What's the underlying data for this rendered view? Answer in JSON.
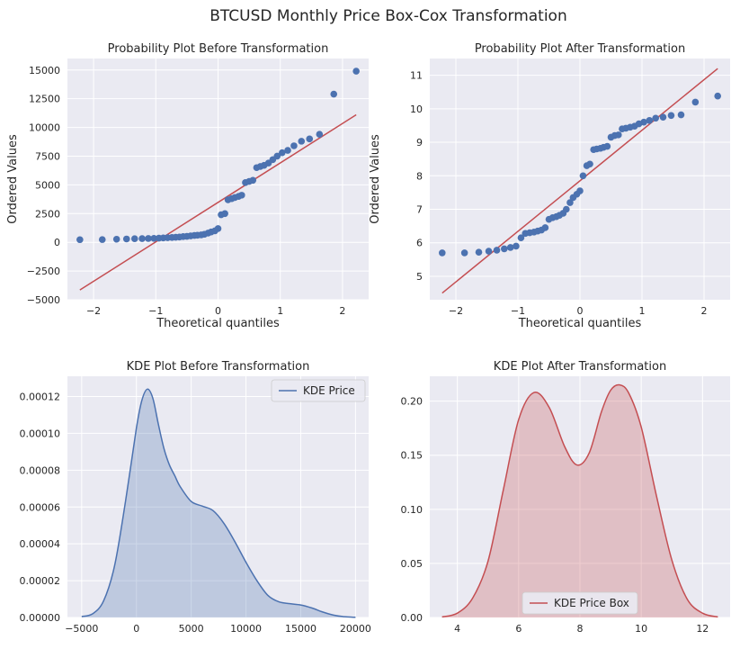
{
  "figure": {
    "title": "BTCUSD Monthly Price Box-Cox Transformation"
  },
  "colors": {
    "blue": "#4c72b0",
    "red": "#c44e52",
    "panel": "#eaeaf2",
    "grid": "#ffffff",
    "text": "#262626"
  },
  "chart_data": [
    {
      "id": "pp_before",
      "type": "scatter",
      "title": "Probability Plot Before Transformation",
      "xlabel": "Theoretical quantiles",
      "ylabel": "Ordered Values",
      "xlim": [
        -2.42,
        2.42
      ],
      "ylim": [
        -5000,
        16000
      ],
      "xticks": [
        -2,
        -1,
        0,
        1,
        2
      ],
      "yticks": [
        -5000,
        -2500,
        0,
        2500,
        5000,
        7500,
        10000,
        12500,
        15000
      ],
      "grid": true,
      "series": [
        {
          "kind": "points",
          "x": [
            -2.22,
            -1.86,
            -1.63,
            -1.47,
            -1.34,
            -1.22,
            -1.12,
            -1.03,
            -0.95,
            -0.88,
            -0.81,
            -0.74,
            -0.68,
            -0.62,
            -0.56,
            -0.5,
            -0.44,
            -0.38,
            -0.33,
            -0.27,
            -0.22,
            -0.16,
            -0.11,
            -0.05,
            0.0,
            0.05,
            0.11,
            0.16,
            0.22,
            0.27,
            0.33,
            0.38,
            0.44,
            0.5,
            0.56,
            0.62,
            0.68,
            0.74,
            0.81,
            0.88,
            0.95,
            1.03,
            1.12,
            1.22,
            1.34,
            1.47,
            1.63,
            1.86,
            2.22
          ],
          "y": [
            230,
            240,
            270,
            290,
            310,
            320,
            330,
            340,
            360,
            380,
            400,
            420,
            440,
            460,
            500,
            520,
            560,
            600,
            620,
            650,
            700,
            800,
            900,
            1000,
            1200,
            2400,
            2500,
            3700,
            3800,
            3900,
            4000,
            4100,
            5200,
            5300,
            5400,
            6500,
            6600,
            6700,
            6900,
            7200,
            7500,
            7800,
            8000,
            8400,
            8800,
            9000,
            9400,
            12900,
            14900
          ]
        },
        {
          "kind": "fit-line",
          "x": [
            -2.22,
            2.22
          ],
          "y": [
            -4150,
            11100
          ]
        }
      ]
    },
    {
      "id": "pp_after",
      "type": "scatter",
      "title": "Probability Plot After Transformation",
      "xlabel": "Theoretical quantiles",
      "ylabel": "Ordered Values",
      "xlim": [
        -2.42,
        2.42
      ],
      "ylim": [
        4.3,
        11.5
      ],
      "xticks": [
        -2,
        -1,
        0,
        1,
        2
      ],
      "yticks": [
        5,
        6,
        7,
        8,
        9,
        10,
        11
      ],
      "grid": true,
      "series": [
        {
          "kind": "points",
          "x": [
            -2.22,
            -1.86,
            -1.63,
            -1.47,
            -1.34,
            -1.22,
            -1.12,
            -1.03,
            -0.95,
            -0.88,
            -0.81,
            -0.74,
            -0.68,
            -0.62,
            -0.56,
            -0.5,
            -0.44,
            -0.38,
            -0.33,
            -0.27,
            -0.22,
            -0.16,
            -0.11,
            -0.05,
            0.0,
            0.05,
            0.11,
            0.16,
            0.22,
            0.27,
            0.33,
            0.38,
            0.44,
            0.5,
            0.56,
            0.62,
            0.68,
            0.74,
            0.81,
            0.88,
            0.95,
            1.03,
            1.12,
            1.22,
            1.34,
            1.47,
            1.63,
            1.86,
            2.22
          ],
          "y": [
            5.7,
            5.7,
            5.72,
            5.75,
            5.78,
            5.82,
            5.86,
            5.9,
            6.15,
            6.28,
            6.3,
            6.32,
            6.35,
            6.38,
            6.45,
            6.7,
            6.75,
            6.78,
            6.82,
            6.88,
            7.0,
            7.2,
            7.35,
            7.45,
            7.55,
            8.0,
            8.3,
            8.35,
            8.78,
            8.8,
            8.82,
            8.85,
            8.88,
            9.15,
            9.2,
            9.22,
            9.4,
            9.42,
            9.45,
            9.48,
            9.55,
            9.6,
            9.65,
            9.72,
            9.75,
            9.8,
            9.82,
            10.2,
            10.38
          ]
        },
        {
          "kind": "fit-line",
          "x": [
            -2.22,
            2.22
          ],
          "y": [
            4.5,
            11.2
          ]
        }
      ]
    },
    {
      "id": "kde_before",
      "type": "area",
      "title": "KDE Plot Before Transformation",
      "xlabel": "",
      "ylabel": "",
      "xlim": [
        -6300,
        21200
      ],
      "ylim": [
        0,
        0.000131
      ],
      "xticks": [
        -5000,
        0,
        5000,
        10000,
        15000,
        20000
      ],
      "yticks": [
        0.0,
        2e-05,
        4e-05,
        6e-05,
        8e-05,
        0.0001,
        0.00012
      ],
      "ytick_labels": [
        "0.00000",
        "0.00002",
        "0.00004",
        "0.00006",
        "0.00008",
        "0.00010",
        "0.00012"
      ],
      "grid": true,
      "legend": {
        "placement": "top-right",
        "label": "KDE Price"
      },
      "series": [
        {
          "name": "KDE Price",
          "x": [
            -5000,
            -4000,
            -3000,
            -2000,
            -1000,
            0,
            500,
            1000,
            1500,
            2000,
            2500,
            3000,
            3500,
            4000,
            5000,
            6000,
            7000,
            8000,
            9000,
            10000,
            11000,
            12000,
            13000,
            14000,
            15000,
            16000,
            17000,
            18000,
            19000,
            20000
          ],
          "y": [
            5e-07,
            2e-06,
            9e-06,
            2.8e-05,
            6.3e-05,
            0.000103,
            0.000118,
            0.000124,
            0.000119,
            0.000105,
            9.2e-05,
            8.3e-05,
            7.7e-05,
            7.1e-05,
            6.3e-05,
            6.05e-05,
            5.8e-05,
            5.1e-05,
            4.1e-05,
            3e-05,
            2e-05,
            1.2e-05,
            8.5e-06,
            7.5e-06,
            6.8e-06,
            5.2e-06,
            3e-06,
            1.3e-06,
            4e-07,
            1e-07
          ]
        }
      ]
    },
    {
      "id": "kde_after",
      "type": "area",
      "title": "KDE Plot After Transformation",
      "xlabel": "",
      "ylabel": "",
      "xlim": [
        3.1,
        12.9
      ],
      "ylim": [
        0,
        0.223
      ],
      "xticks": [
        4,
        6,
        8,
        10,
        12
      ],
      "yticks": [
        0.0,
        0.05,
        0.1,
        0.15,
        0.2
      ],
      "ytick_labels": [
        "0.00",
        "0.05",
        "0.10",
        "0.15",
        "0.20"
      ],
      "grid": true,
      "legend": {
        "placement": "bottom-center",
        "label": "KDE Price Box"
      },
      "series": [
        {
          "name": "KDE Price Box",
          "x": [
            3.5,
            4.0,
            4.5,
            5.0,
            5.5,
            6.0,
            6.5,
            7.0,
            7.5,
            7.9,
            8.3,
            8.7,
            9.0,
            9.3,
            9.6,
            10.0,
            10.5,
            11.0,
            11.5,
            12.0,
            12.5
          ],
          "y": [
            0.0005,
            0.004,
            0.018,
            0.052,
            0.118,
            0.183,
            0.208,
            0.194,
            0.158,
            0.141,
            0.152,
            0.19,
            0.21,
            0.215,
            0.207,
            0.176,
            0.112,
            0.053,
            0.017,
            0.004,
            0.0005
          ]
        }
      ]
    }
  ]
}
